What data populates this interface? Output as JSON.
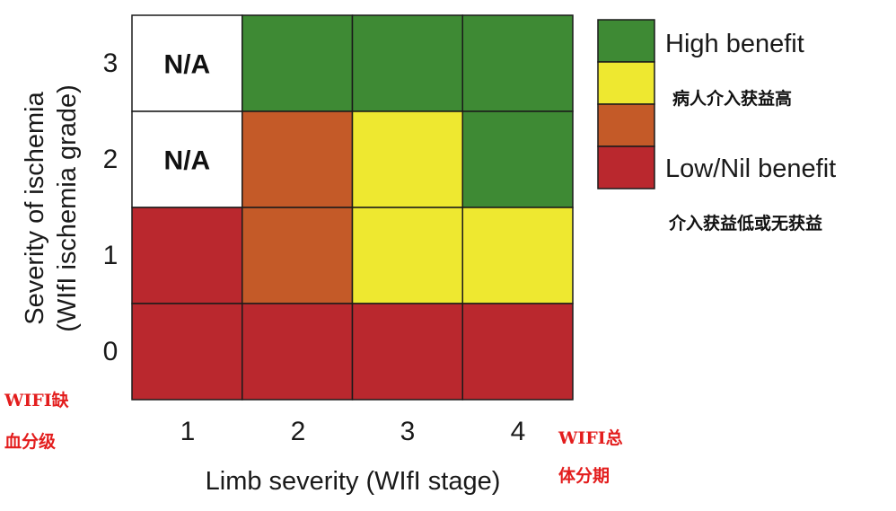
{
  "chart_data": {
    "type": "heatmap",
    "x_categories": [
      "1",
      "2",
      "3",
      "4"
    ],
    "y_categories": [
      "0",
      "1",
      "2",
      "3"
    ],
    "xlabel": "Limb severity (WIfI stage)",
    "ylabel_line1": "Severity of ischemia",
    "ylabel_line2": "(WIfI ischemia grade)",
    "levels": {
      "na": {
        "color": "#ffffff",
        "text": "N/A"
      },
      "high": {
        "color": "#3e8a34"
      },
      "moderate": {
        "color": "#eee830"
      },
      "low": {
        "color": "#c45a28"
      },
      "nil": {
        "color": "#ba282e"
      }
    },
    "grid": [
      [
        "na",
        "high",
        "high",
        "high"
      ],
      [
        "na",
        "low",
        "moderate",
        "high"
      ],
      [
        "nil",
        "low",
        "moderate",
        "moderate"
      ],
      [
        "nil",
        "nil",
        "nil",
        "nil"
      ]
    ],
    "grid_rows_y": [
      "3",
      "2",
      "1",
      "0"
    ],
    "legend": [
      {
        "level": "high",
        "label": "High benefit"
      },
      {
        "level": "moderate",
        "label": ""
      },
      {
        "level": "low",
        "label": ""
      },
      {
        "level": "nil",
        "label": "Low/Nil benefit"
      }
    ]
  },
  "annotations": {
    "legend_cn_high": "病人介入获益高",
    "legend_cn_low": "介入获益低或无获益",
    "y_note_line1": "WIFI缺",
    "y_note_line2": "血分级",
    "x_note_line1": "WIFI总",
    "x_note_line2": "体分期"
  }
}
